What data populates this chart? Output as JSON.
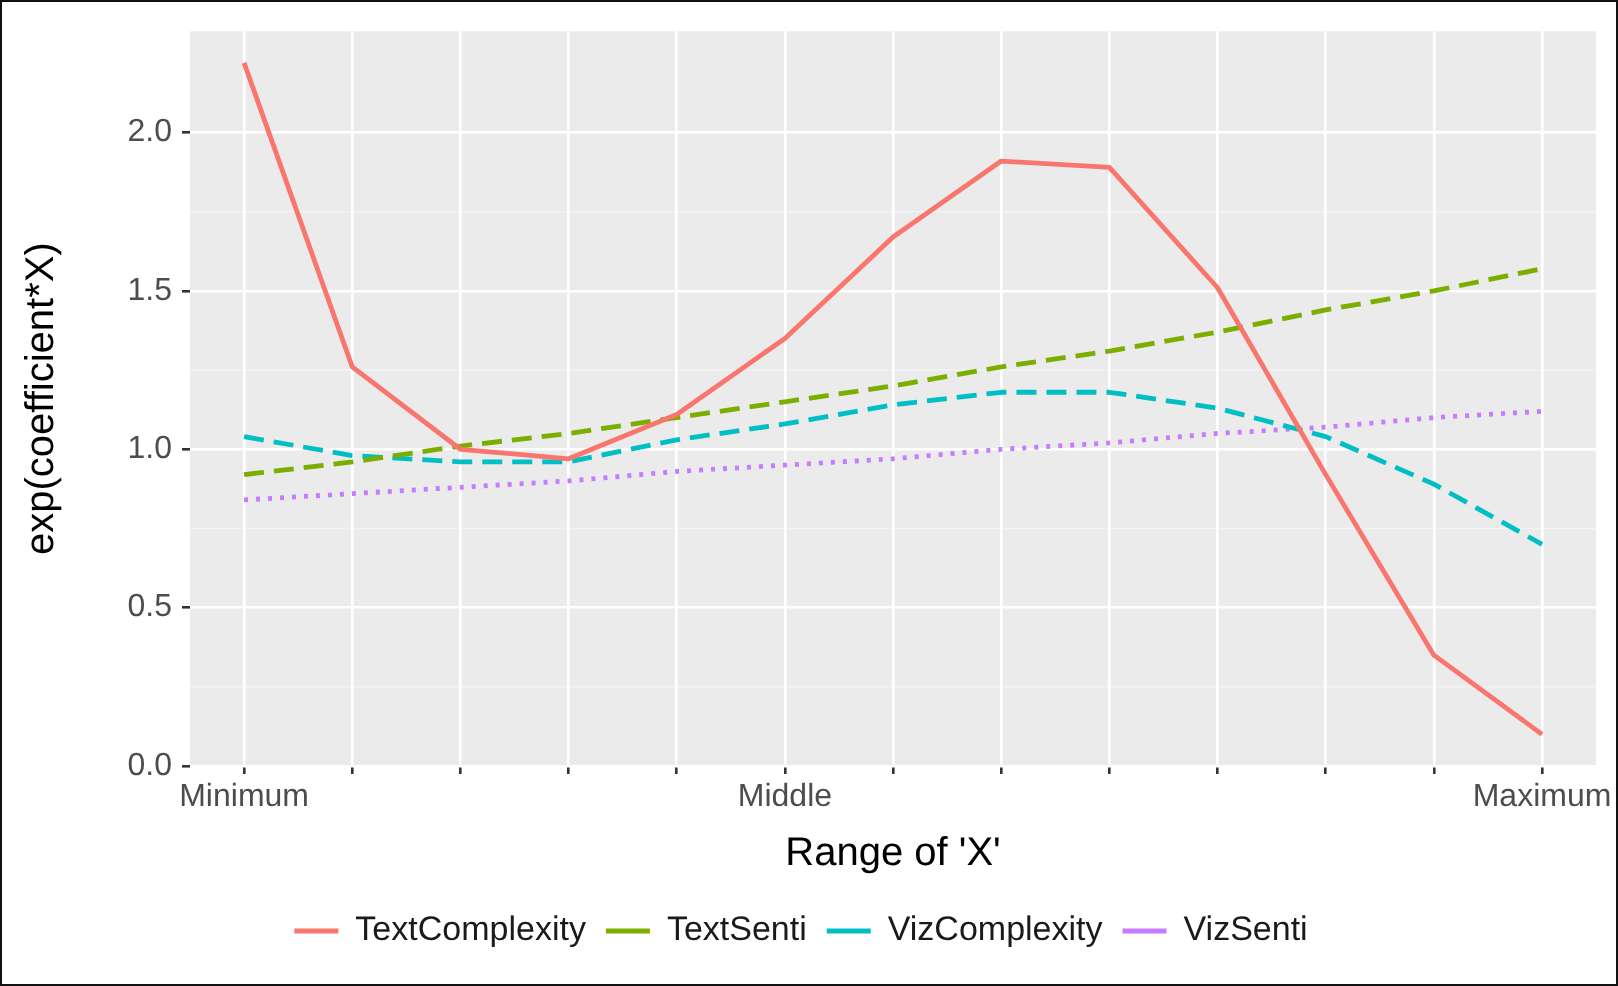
{
  "chart_data": {
    "type": "line",
    "xlabel": "Range of 'X'",
    "ylabel": "exp(coefficient*X)",
    "categories": [
      "Minimum",
      null,
      null,
      null,
      null,
      "Middle",
      null,
      null,
      null,
      null,
      null,
      null,
      "Maximum"
    ],
    "ylim": [
      0,
      2.32
    ],
    "yticks": [
      {
        "value": 0,
        "label": "0.0"
      },
      0.5,
      {
        "value": 1,
        "label": "1.0"
      },
      1.5,
      {
        "value": 2,
        "label": "2.0"
      }
    ],
    "grid": true,
    "legend": "bottom",
    "marker": "none",
    "series": [
      {
        "name": "TextComplexity",
        "color": "#f8766d",
        "line_style": "solid",
        "values": [
          2.22,
          1.26,
          1.0,
          0.97,
          1.11,
          1.35,
          1.67,
          1.91,
          1.89,
          1.51,
          0.92,
          0.35,
          0.1
        ]
      },
      {
        "name": "TextSenti",
        "color": "#7cae00",
        "line_style": "dashed",
        "values": [
          0.92,
          0.96,
          1.01,
          1.05,
          1.1,
          1.15,
          1.2,
          1.26,
          1.31,
          1.37,
          1.44,
          1.5,
          1.57
        ]
      },
      {
        "name": "VizComplexity",
        "color": "#00bfc4",
        "line_style": "dashed",
        "values": [
          1.04,
          0.98,
          0.96,
          0.96,
          1.03,
          1.08,
          1.14,
          1.18,
          1.18,
          1.13,
          1.04,
          0.89,
          0.7
        ]
      },
      {
        "name": "VizSenti",
        "color": "#c77cff",
        "line_style": "dotted",
        "values": [
          0.84,
          0.86,
          0.88,
          0.9,
          0.93,
          0.95,
          0.97,
          1.0,
          1.02,
          1.05,
          1.07,
          1.1,
          1.12
        ]
      }
    ]
  }
}
